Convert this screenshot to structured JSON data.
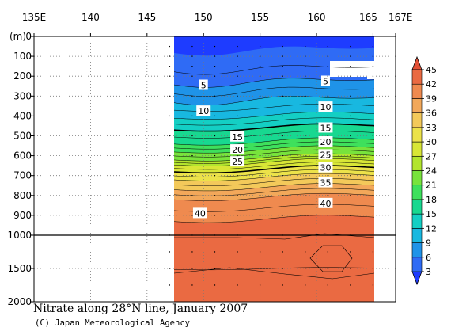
{
  "chart_data": {
    "type": "heatmap",
    "title": "Nitrate along 28°N line, January 2007",
    "credit": "(C) Japan Meteorological Agency",
    "xlabel": "",
    "ylabel": "(m)",
    "x_ticks": [
      {
        "value": 135,
        "label": "135E"
      },
      {
        "value": 140,
        "label": "140"
      },
      {
        "value": 145,
        "label": "145"
      },
      {
        "value": 150,
        "label": "150"
      },
      {
        "value": 155,
        "label": "155"
      },
      {
        "value": 160,
        "label": "160"
      },
      {
        "value": 165,
        "label": "165"
      },
      {
        "value": 167,
        "label": "167E"
      }
    ],
    "xlim": [
      135,
      167
    ],
    "upper_ylim": [
      0,
      1000
    ],
    "lower_ylim": [
      1000,
      2000
    ],
    "y_ticks_upper": [
      "0",
      "100",
      "200",
      "300",
      "400",
      "500",
      "600",
      "700",
      "800",
      "900",
      "1000"
    ],
    "y_ticks_lower": [
      "1500",
      "2000"
    ],
    "data_lon_range": [
      147,
      165
    ],
    "stations_lon": [
      147,
      149,
      151,
      153,
      155,
      157,
      159,
      161,
      163,
      165
    ],
    "contour_labels": [
      {
        "text": "5",
        "lon": 150.0,
        "depth": 245
      },
      {
        "text": "5",
        "lon": 160.8,
        "depth": 225
      },
      {
        "text": "10",
        "lon": 150.0,
        "depth": 375
      },
      {
        "text": "10",
        "lon": 160.8,
        "depth": 355
      },
      {
        "text": "15",
        "lon": 153.0,
        "depth": 505
      },
      {
        "text": "15",
        "lon": 160.8,
        "depth": 460
      },
      {
        "text": "20",
        "lon": 153.0,
        "depth": 570
      },
      {
        "text": "20",
        "lon": 160.8,
        "depth": 530
      },
      {
        "text": "25",
        "lon": 153.0,
        "depth": 630
      },
      {
        "text": "25",
        "lon": 160.8,
        "depth": 595
      },
      {
        "text": "30",
        "lon": 160.8,
        "depth": 660
      },
      {
        "text": "35",
        "lon": 160.8,
        "depth": 735
      },
      {
        "text": "40",
        "lon": 149.7,
        "depth": 890
      },
      {
        "text": "40",
        "lon": 160.8,
        "depth": 840
      }
    ],
    "colorbar": {
      "min": 3,
      "max": 45,
      "step": 3,
      "tick_labels": [
        "3",
        "6",
        "9",
        "12",
        "15",
        "18",
        "21",
        "24",
        "27",
        "30",
        "33",
        "36",
        "39",
        "42",
        "45"
      ],
      "colors": [
        "#1e3cff",
        "#2f6bf5",
        "#1f93e8",
        "#18b8e0",
        "#14cfc4",
        "#18d890",
        "#3ee05c",
        "#78e33c",
        "#b2e52e",
        "#d8e636",
        "#ece24a",
        "#f3c95a",
        "#f2a85a",
        "#ef8a4f",
        "#ea6a42",
        "#e25036"
      ]
    }
  }
}
